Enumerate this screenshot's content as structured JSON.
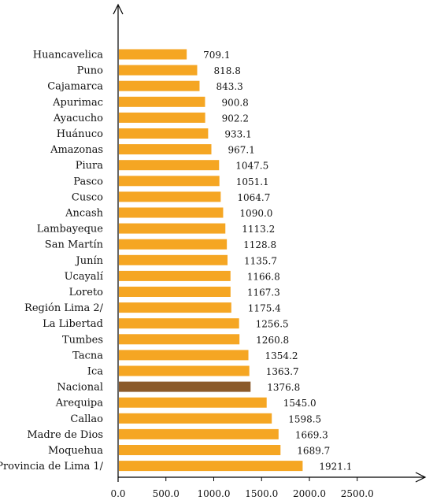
{
  "chart_data": {
    "type": "bar",
    "orientation": "horizontal",
    "categories": [
      "Huancavelica",
      "Puno",
      "Cajamarca",
      "Apurimac",
      "Ayacucho",
      "Huánuco",
      "Amazonas",
      "Piura",
      "Pasco",
      "Cusco",
      "Ancash",
      "Lambayeque",
      "San Martín",
      "Junín",
      "Ucayalí",
      "Loreto",
      "Región Lima 2/",
      "La Libertad",
      "Tumbes",
      "Tacna",
      "Ica",
      "Nacional",
      "Arequipa",
      "Callao",
      "Madre de Dios",
      "Moquehua",
      "Provincia de Lima 1/"
    ],
    "values": [
      709.1,
      818.8,
      843.3,
      900.8,
      902.2,
      933.1,
      967.1,
      1047.5,
      1051.1,
      1064.7,
      1090.0,
      1113.2,
      1128.8,
      1135.7,
      1166.8,
      1167.3,
      1175.4,
      1256.5,
      1260.8,
      1354.2,
      1363.7,
      1376.8,
      1545.0,
      1598.5,
      1669.3,
      1689.7,
      1921.1
    ],
    "value_labels": [
      "709.1",
      "818.8",
      "843.3",
      "900.8",
      "902.2",
      "933.1",
      "967.1",
      "1047.5",
      "1051.1",
      "1064.7",
      "1090.0",
      "1113.2",
      "1128.8",
      "1135.7",
      "1166.8",
      "1167.3",
      "1175.4",
      "1256.5",
      "1260.8",
      "1354.2",
      "1363.7",
      "1376.8",
      "1545.0",
      "1598.5",
      "1669.3",
      "1689.7",
      "1921.1"
    ],
    "highlight_category": "Nacional",
    "xlim": [
      0,
      3000
    ],
    "x_ticks": [
      0,
      500,
      1000,
      1500,
      2000,
      2500
    ],
    "x_tick_labels": [
      "0.0",
      "500.0",
      "1000.0",
      "1500.0",
      "2000.0",
      "2500.0"
    ],
    "title": "",
    "xlabel": "",
    "ylabel": "",
    "grid": false,
    "colors": {
      "bar": "#f5a623",
      "bar_highlight": "#8b5a2b",
      "axis": "#000000"
    }
  }
}
